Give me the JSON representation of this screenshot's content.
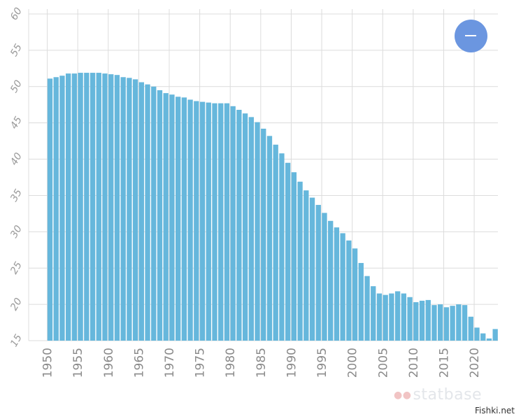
{
  "chart_data": {
    "type": "bar",
    "x": [
      1950,
      1951,
      1952,
      1953,
      1954,
      1955,
      1956,
      1957,
      1958,
      1959,
      1960,
      1961,
      1962,
      1963,
      1964,
      1965,
      1966,
      1967,
      1968,
      1969,
      1970,
      1971,
      1972,
      1973,
      1974,
      1975,
      1976,
      1977,
      1978,
      1979,
      1980,
      1981,
      1982,
      1983,
      1984,
      1985,
      1986,
      1987,
      1988,
      1989,
      1990,
      1991,
      1992,
      1993,
      1994,
      1995,
      1996,
      1997,
      1998,
      1999,
      2000,
      2001,
      2002,
      2003,
      2004,
      2005,
      2006,
      2007,
      2008,
      2009,
      2010,
      2011,
      2012,
      2013,
      2014,
      2015,
      2016,
      2017,
      2018,
      2019,
      2020,
      2021,
      2022,
      2023
    ],
    "values": [
      51.1,
      51.3,
      51.5,
      51.8,
      51.8,
      51.9,
      51.9,
      51.9,
      51.9,
      51.8,
      51.7,
      51.6,
      51.3,
      51.2,
      51.0,
      50.6,
      50.3,
      50.0,
      49.5,
      49.1,
      48.9,
      48.6,
      48.5,
      48.2,
      48.0,
      47.9,
      47.8,
      47.7,
      47.7,
      47.7,
      47.3,
      46.8,
      46.3,
      45.8,
      45.1,
      44.2,
      43.2,
      42.0,
      40.8,
      39.5,
      38.2,
      36.9,
      35.7,
      34.7,
      33.7,
      32.6,
      31.5,
      30.6,
      29.8,
      28.8,
      27.7,
      25.7,
      23.9,
      22.5,
      21.5,
      21.3,
      21.5,
      21.8,
      21.5,
      21.0,
      20.3,
      20.5,
      20.6,
      19.9,
      20.0,
      19.6,
      19.8,
      20.0,
      19.9,
      18.3,
      16.8,
      16.0,
      15.3,
      16.6
    ],
    "xticks": [
      "1950",
      "1955",
      "1960",
      "1965",
      "1970",
      "1975",
      "1980",
      "1985",
      "1990",
      "1995",
      "2000",
      "2005",
      "2010",
      "2015",
      "2020"
    ],
    "yticks": [
      "15",
      "20",
      "25",
      "30",
      "35",
      "40",
      "45",
      "50",
      "55",
      "60"
    ],
    "ylim": [
      15,
      60
    ],
    "xlim": [
      1950,
      2023
    ],
    "grid": true,
    "bar_color": "#66b7dc",
    "grid_color": "#dcdcdc",
    "title": "",
    "xlabel": "",
    "ylabel": ""
  },
  "legend_button": {
    "color": "#6b96e0",
    "icon": "minus-icon"
  },
  "watermark": {
    "text": "statbase"
  },
  "source": {
    "text": "Fishki.net"
  }
}
